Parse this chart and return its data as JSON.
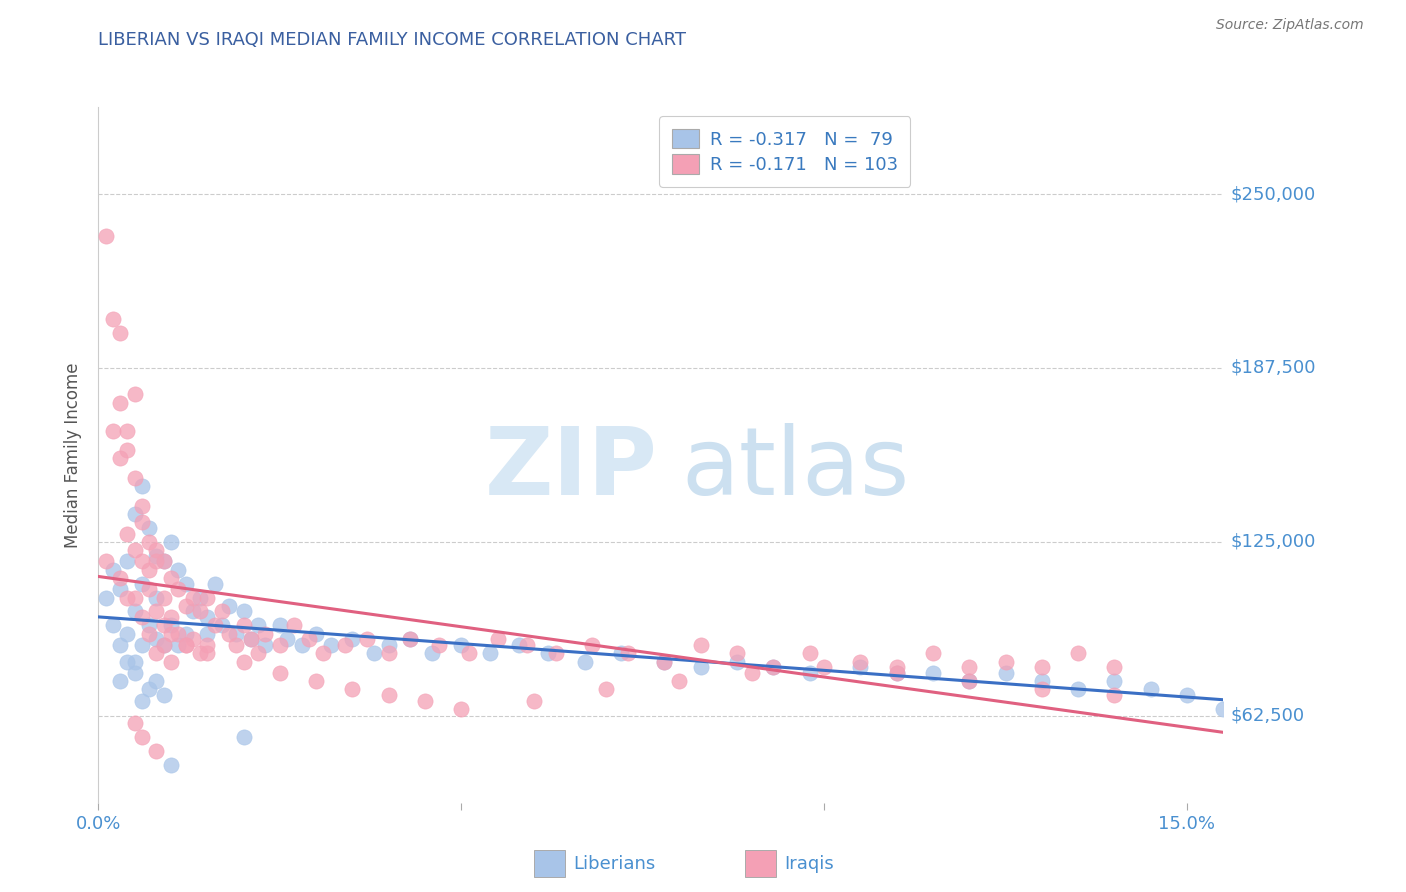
{
  "title": "LIBERIAN VS IRAQI MEDIAN FAMILY INCOME CORRELATION CHART",
  "source": "Source: ZipAtlas.com",
  "ylabel": "Median Family Income",
  "xlim": [
    0.0,
    0.155
  ],
  "ylim": [
    31250,
    281250
  ],
  "yticks": [
    62500,
    125000,
    187500,
    250000
  ],
  "ytick_labels": [
    "$62,500",
    "$125,000",
    "$187,500",
    "$250,000"
  ],
  "xticks": [
    0.0,
    0.05,
    0.1,
    0.15
  ],
  "xtick_labels": [
    "0.0%",
    "",
    "",
    "15.0%"
  ],
  "liberian_color": "#a8c4e8",
  "iraqi_color": "#f4a0b5",
  "liberian_line_color": "#3a6fc4",
  "iraqi_line_color": "#e06080",
  "R_liberian": -0.317,
  "N_liberian": 79,
  "R_iraqi": -0.171,
  "N_iraqi": 103,
  "legend_label_liberian": "Liberians",
  "legend_label_iraqi": "Iraqis",
  "title_color": "#3a5fa0",
  "axis_color": "#3a7abf",
  "tick_color": "#4a90d0",
  "background_color": "#ffffff",
  "liberian_x": [
    0.001,
    0.002,
    0.002,
    0.003,
    0.003,
    0.004,
    0.004,
    0.005,
    0.005,
    0.005,
    0.006,
    0.006,
    0.006,
    0.007,
    0.007,
    0.008,
    0.008,
    0.008,
    0.009,
    0.009,
    0.01,
    0.01,
    0.011,
    0.011,
    0.012,
    0.012,
    0.013,
    0.014,
    0.015,
    0.016,
    0.017,
    0.018,
    0.019,
    0.02,
    0.021,
    0.022,
    0.023,
    0.025,
    0.026,
    0.028,
    0.03,
    0.032,
    0.035,
    0.038,
    0.04,
    0.043,
    0.046,
    0.05,
    0.054,
    0.058,
    0.062,
    0.067,
    0.072,
    0.078,
    0.083,
    0.088,
    0.093,
    0.098,
    0.105,
    0.11,
    0.115,
    0.12,
    0.125,
    0.13,
    0.135,
    0.14,
    0.145,
    0.15,
    0.155,
    0.003,
    0.004,
    0.005,
    0.006,
    0.007,
    0.008,
    0.009,
    0.01,
    0.015,
    0.02
  ],
  "liberian_y": [
    105000,
    115000,
    95000,
    108000,
    88000,
    118000,
    92000,
    135000,
    100000,
    82000,
    145000,
    110000,
    88000,
    130000,
    95000,
    120000,
    105000,
    90000,
    118000,
    88000,
    125000,
    95000,
    115000,
    88000,
    110000,
    92000,
    100000,
    105000,
    98000,
    110000,
    95000,
    102000,
    92000,
    100000,
    90000,
    95000,
    88000,
    95000,
    90000,
    88000,
    92000,
    88000,
    90000,
    85000,
    88000,
    90000,
    85000,
    88000,
    85000,
    88000,
    85000,
    82000,
    85000,
    82000,
    80000,
    82000,
    80000,
    78000,
    80000,
    78000,
    78000,
    75000,
    78000,
    75000,
    72000,
    75000,
    72000,
    70000,
    65000,
    75000,
    82000,
    78000,
    68000,
    72000,
    75000,
    70000,
    45000,
    92000,
    55000
  ],
  "iraqi_x": [
    0.001,
    0.001,
    0.002,
    0.002,
    0.003,
    0.003,
    0.003,
    0.004,
    0.004,
    0.004,
    0.005,
    0.005,
    0.005,
    0.006,
    0.006,
    0.006,
    0.007,
    0.007,
    0.007,
    0.008,
    0.008,
    0.008,
    0.009,
    0.009,
    0.009,
    0.01,
    0.01,
    0.01,
    0.011,
    0.011,
    0.012,
    0.012,
    0.013,
    0.013,
    0.014,
    0.014,
    0.015,
    0.015,
    0.016,
    0.017,
    0.018,
    0.019,
    0.02,
    0.021,
    0.022,
    0.023,
    0.025,
    0.027,
    0.029,
    0.031,
    0.034,
    0.037,
    0.04,
    0.043,
    0.047,
    0.051,
    0.055,
    0.059,
    0.063,
    0.068,
    0.073,
    0.078,
    0.083,
    0.088,
    0.093,
    0.098,
    0.105,
    0.11,
    0.115,
    0.12,
    0.125,
    0.13,
    0.135,
    0.14,
    0.003,
    0.004,
    0.005,
    0.006,
    0.007,
    0.008,
    0.009,
    0.01,
    0.012,
    0.015,
    0.02,
    0.025,
    0.03,
    0.035,
    0.04,
    0.045,
    0.05,
    0.06,
    0.07,
    0.08,
    0.09,
    0.1,
    0.11,
    0.12,
    0.13,
    0.14,
    0.005,
    0.006,
    0.008
  ],
  "iraqi_y": [
    118000,
    235000,
    205000,
    165000,
    175000,
    200000,
    112000,
    158000,
    128000,
    105000,
    148000,
    122000,
    105000,
    118000,
    138000,
    98000,
    125000,
    108000,
    92000,
    122000,
    100000,
    85000,
    118000,
    105000,
    88000,
    112000,
    98000,
    82000,
    108000,
    92000,
    102000,
    88000,
    105000,
    90000,
    100000,
    85000,
    105000,
    88000,
    95000,
    100000,
    92000,
    88000,
    95000,
    90000,
    85000,
    92000,
    88000,
    95000,
    90000,
    85000,
    88000,
    90000,
    85000,
    90000,
    88000,
    85000,
    90000,
    88000,
    85000,
    88000,
    85000,
    82000,
    88000,
    85000,
    80000,
    85000,
    82000,
    80000,
    85000,
    80000,
    82000,
    80000,
    85000,
    80000,
    155000,
    165000,
    178000,
    132000,
    115000,
    118000,
    95000,
    92000,
    88000,
    85000,
    82000,
    78000,
    75000,
    72000,
    70000,
    68000,
    65000,
    68000,
    72000,
    75000,
    78000,
    80000,
    78000,
    75000,
    72000,
    70000,
    60000,
    55000,
    50000
  ]
}
